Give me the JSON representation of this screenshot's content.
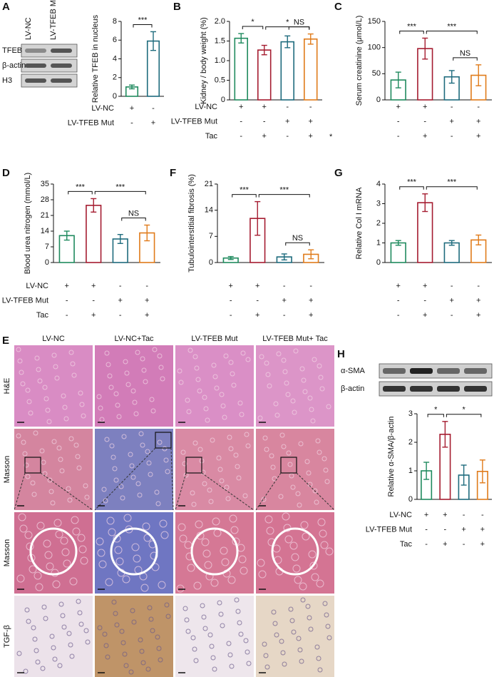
{
  "blot_A": {
    "lanes": [
      "LV-NC",
      "LV-TFEB Mut"
    ],
    "rows": [
      "TFEB",
      "β-actin",
      "H3"
    ]
  },
  "blot_H": {
    "rows": [
      "α-SMA",
      "β-actin"
    ]
  },
  "histology": {
    "panel": "E",
    "columns": [
      "LV-NC",
      "LV-NC+Tac",
      "LV-TFEB Mut",
      "LV-TFEB Mut+ Tac"
    ],
    "rows": [
      "H&E",
      "Masson",
      "Masson",
      "TGF-β"
    ]
  },
  "chart_data": [
    {
      "type": "bar",
      "panel": "A",
      "y_label": "Relative TFEB in nucleus",
      "values": [
        1.0,
        5.9
      ],
      "errors": [
        0.2,
        1.0
      ],
      "colors": [
        "#1f8a5e",
        "#1e6b7d"
      ],
      "ylim": [
        0,
        8
      ],
      "yticks": [
        0,
        2,
        4,
        6,
        8
      ],
      "significance": [
        {
          "from": 0,
          "to": 1,
          "label": "***"
        }
      ],
      "conditions": [
        {
          "name": "LV-NC",
          "signs": [
            "+",
            "-"
          ]
        },
        {
          "name": "LV-TFEB Mut",
          "signs": [
            "-",
            "+"
          ]
        }
      ]
    },
    {
      "type": "bar",
      "panel": "B",
      "y_label": "Kidney / body weight (%)",
      "note": "*",
      "values": [
        1.57,
        1.27,
        1.48,
        1.55
      ],
      "errors": [
        0.12,
        0.12,
        0.15,
        0.13
      ],
      "colors": [
        "#1f8a5e",
        "#a51c30",
        "#1e6b7d",
        "#e07b1a"
      ],
      "ylim": [
        0,
        2.0
      ],
      "yticks": [
        0,
        0.5,
        {
          "value": 1.0,
          "label": "1.0"
        },
        1.5,
        {
          "value": 2.0,
          "label": "2.0"
        }
      ],
      "significance": [
        {
          "from": 0,
          "to": 1,
          "label": "*"
        },
        {
          "from": 1,
          "to": 3,
          "label": "*"
        },
        {
          "from": 2,
          "to": 3,
          "label": "NS"
        }
      ],
      "conditions": [
        {
          "name": "LV-NC",
          "signs": [
            "+",
            "+",
            "-",
            "-"
          ]
        },
        {
          "name": "LV-TFEB Mut",
          "signs": [
            "-",
            "-",
            "+",
            "+"
          ]
        },
        {
          "name": "Tac",
          "signs": [
            "-",
            "+",
            "-",
            "+"
          ]
        }
      ]
    },
    {
      "type": "bar",
      "panel": "C",
      "y_label": "Serum creatinine (μmol/L)",
      "values": [
        38,
        98,
        44,
        47
      ],
      "errors": [
        15,
        20,
        12,
        20
      ],
      "colors": [
        "#1f8a5e",
        "#a51c30",
        "#1e6b7d",
        "#e07b1a"
      ],
      "ylim": [
        0,
        150
      ],
      "yticks": [
        0,
        50,
        100,
        150
      ],
      "significance": [
        {
          "from": 0,
          "to": 1,
          "label": "***"
        },
        {
          "from": 1,
          "to": 3,
          "label": "***"
        },
        {
          "from": 2,
          "to": 3,
          "label": "NS"
        }
      ],
      "conditions": [
        {
          "signs": [
            "+",
            "+",
            "-",
            "-"
          ]
        },
        {
          "signs": [
            "-",
            "-",
            "+",
            "+"
          ]
        },
        {
          "signs": [
            "-",
            "+",
            "-",
            "+"
          ]
        }
      ]
    },
    {
      "type": "bar",
      "panel": "D",
      "y_label": "Blood urea nitrogen (mmol/L)",
      "values": [
        12,
        25.5,
        10.5,
        13.2
      ],
      "errors": [
        2,
        3,
        2,
        3.5
      ],
      "colors": [
        "#1f8a5e",
        "#a51c30",
        "#1e6b7d",
        "#e07b1a"
      ],
      "ylim": [
        0,
        35
      ],
      "yticks": [
        0,
        7,
        14,
        21,
        28,
        35
      ],
      "significance": [
        {
          "from": 0,
          "to": 1,
          "label": "***"
        },
        {
          "from": 1,
          "to": 3,
          "label": "***"
        },
        {
          "from": 2,
          "to": 3,
          "label": "NS"
        }
      ],
      "conditions": [
        {
          "name": "LV-NC",
          "signs": [
            "+",
            "+",
            "-",
            "-"
          ]
        },
        {
          "name": "LV-TFEB Mut",
          "signs": [
            "-",
            "-",
            "+",
            "+"
          ]
        },
        {
          "name": "Tac",
          "signs": [
            "-",
            "+",
            "-",
            "+"
          ]
        }
      ]
    },
    {
      "type": "bar",
      "panel": "F",
      "y_label": "Tubulointerstitial fibrosis (%)",
      "values": [
        1.2,
        11.8,
        1.5,
        2.2
      ],
      "errors": [
        0.4,
        4.5,
        0.8,
        1.2
      ],
      "colors": [
        "#1f8a5e",
        "#a51c30",
        "#1e6b7d",
        "#e07b1a"
      ],
      "ylim": [
        0,
        21
      ],
      "yticks": [
        0,
        7,
        14,
        21
      ],
      "significance": [
        {
          "from": 0,
          "to": 1,
          "label": "***"
        },
        {
          "from": 1,
          "to": 3,
          "label": "***"
        },
        {
          "from": 2,
          "to": 3,
          "label": "NS"
        }
      ],
      "conditions": [
        {
          "signs": [
            "+",
            "+",
            "-",
            "-"
          ]
        },
        {
          "signs": [
            "-",
            "-",
            "+",
            "+"
          ]
        },
        {
          "signs": [
            "-",
            "+",
            "-",
            "+"
          ]
        }
      ]
    },
    {
      "type": "bar",
      "panel": "G",
      "y_label": "Relative Col I mRNA",
      "values": [
        1.0,
        3.05,
        1.0,
        1.15
      ],
      "errors": [
        0.12,
        0.45,
        0.12,
        0.25
      ],
      "colors": [
        "#1f8a5e",
        "#a51c30",
        "#1e6b7d",
        "#e07b1a"
      ],
      "ylim": [
        0,
        4
      ],
      "yticks": [
        0,
        1,
        2,
        3,
        4
      ],
      "significance": [
        {
          "from": 0,
          "to": 1,
          "label": "***"
        },
        {
          "from": 1,
          "to": 3,
          "label": "***"
        }
      ],
      "conditions": [
        {
          "signs": [
            "+",
            "+",
            "-",
            "-"
          ]
        },
        {
          "signs": [
            "-",
            "-",
            "+",
            "+"
          ]
        },
        {
          "signs": [
            "-",
            "+",
            "-",
            "+"
          ]
        }
      ]
    },
    {
      "type": "bar",
      "panel": "H",
      "y_label": "Relative α-SMA/β-actin",
      "values": [
        1.0,
        2.28,
        0.85,
        0.98
      ],
      "errors": [
        0.3,
        0.45,
        0.35,
        0.4
      ],
      "colors": [
        "#1f8a5e",
        "#a51c30",
        "#1e6b7d",
        "#e07b1a"
      ],
      "ylim": [
        0,
        3
      ],
      "yticks": [
        0,
        1,
        2,
        3
      ],
      "significance": [
        {
          "from": 0,
          "to": 1,
          "label": "*"
        },
        {
          "from": 1,
          "to": 3,
          "label": "*"
        }
      ],
      "conditions": [
        {
          "name": "LV-NC",
          "signs": [
            "+",
            "+",
            "-",
            "-"
          ]
        },
        {
          "name": "LV-TFEB Mut",
          "signs": [
            "-",
            "-",
            "+",
            "+"
          ]
        },
        {
          "name": "Tac",
          "signs": [
            "-",
            "+",
            "-",
            "+"
          ]
        }
      ]
    }
  ]
}
